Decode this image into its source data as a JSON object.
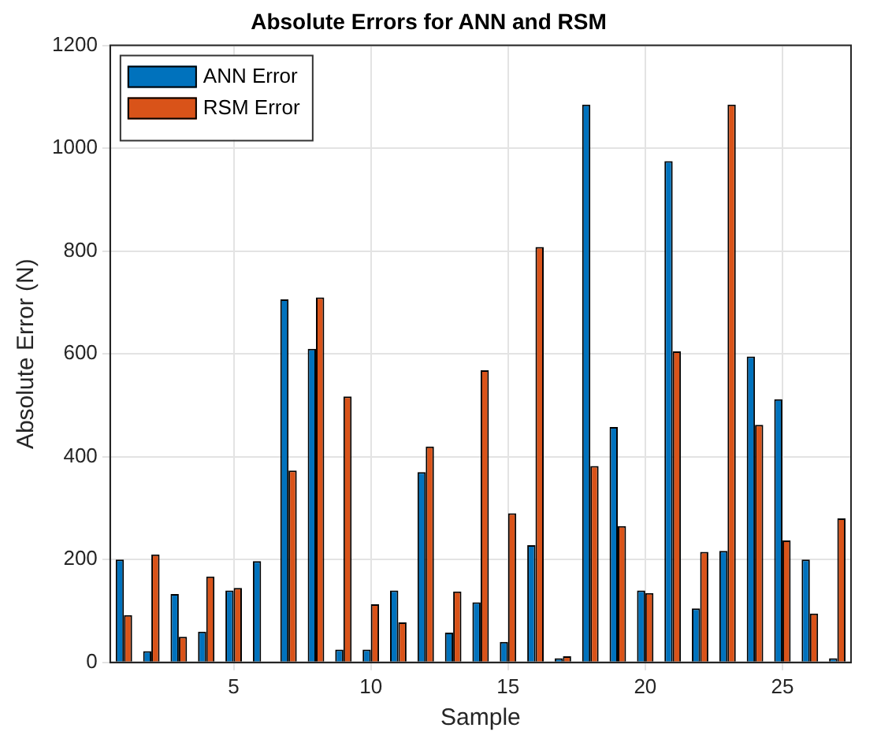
{
  "chart_data": {
    "type": "bar",
    "title": "Absolute Errors for ANN and RSM",
    "xlabel": "Sample",
    "ylabel": "Absolute Error (N)",
    "categories": [
      null,
      null,
      null,
      null,
      "5",
      null,
      null,
      null,
      null,
      "10",
      null,
      null,
      null,
      null,
      "15",
      null,
      null,
      null,
      null,
      "20",
      null,
      null,
      null,
      null,
      "25",
      null,
      null
    ],
    "series": [
      {
        "name": "ANN Error",
        "color": "#0072bd",
        "values": [
          200,
          22,
          133,
          60,
          140,
          197,
          706,
          610,
          25,
          25,
          140,
          370,
          58,
          117,
          40,
          228,
          8,
          1085,
          458,
          140,
          975,
          105,
          217,
          595,
          512,
          200,
          8
        ]
      },
      {
        "name": "RSM Error",
        "color": "#d95319",
        "values": [
          92,
          210,
          50,
          167,
          145,
          0,
          373,
          710,
          517,
          113,
          78,
          420,
          138,
          568,
          290,
          808,
          12,
          382,
          265,
          135,
          605,
          215,
          1085,
          462,
          237,
          95,
          280
        ]
      }
    ],
    "ylim": [
      0,
      1200
    ],
    "yticks": [
      0,
      200,
      400,
      600,
      800,
      1000,
      1200
    ],
    "grid": true,
    "legend": "top left"
  }
}
